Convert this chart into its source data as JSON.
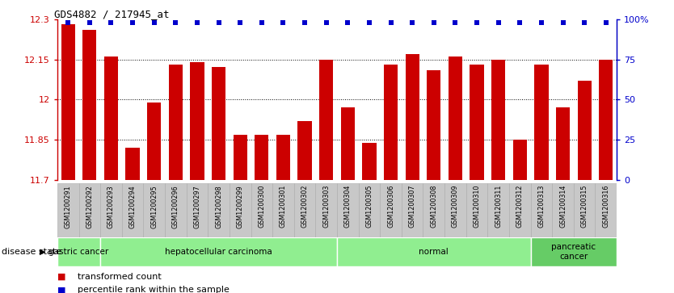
{
  "title": "GDS4882 / 217945_at",
  "samples": [
    "GSM1200291",
    "GSM1200292",
    "GSM1200293",
    "GSM1200294",
    "GSM1200295",
    "GSM1200296",
    "GSM1200297",
    "GSM1200298",
    "GSM1200299",
    "GSM1200300",
    "GSM1200301",
    "GSM1200302",
    "GSM1200303",
    "GSM1200304",
    "GSM1200305",
    "GSM1200306",
    "GSM1200307",
    "GSM1200308",
    "GSM1200309",
    "GSM1200310",
    "GSM1200311",
    "GSM1200312",
    "GSM1200313",
    "GSM1200314",
    "GSM1200315",
    "GSM1200316"
  ],
  "values": [
    12.28,
    12.26,
    12.16,
    11.82,
    11.99,
    12.13,
    12.14,
    12.12,
    11.87,
    11.87,
    11.87,
    11.92,
    12.15,
    11.97,
    11.84,
    12.13,
    12.17,
    12.11,
    12.16,
    12.13,
    12.15,
    11.85,
    12.13,
    11.97,
    12.07,
    12.15
  ],
  "ymin": 11.7,
  "ymax": 12.3,
  "yticks": [
    11.7,
    11.85,
    12.0,
    12.15,
    12.3
  ],
  "ytick_labels": [
    "11.7",
    "11.85",
    "12",
    "12.15",
    "12.3"
  ],
  "right_yticks": [
    0,
    25,
    50,
    75,
    100
  ],
  "right_ytick_labels": [
    "0",
    "25",
    "50",
    "75",
    "100%"
  ],
  "bar_color": "#cc0000",
  "percentile_color": "#0000cc",
  "bg_color": "#ffffff",
  "disease_groups": [
    {
      "label": "gastric cancer",
      "start": 0,
      "end": 2
    },
    {
      "label": "hepatocellular carcinoma",
      "start": 2,
      "end": 13
    },
    {
      "label": "normal",
      "start": 13,
      "end": 22
    },
    {
      "label": "pancreatic\ncancer",
      "start": 22,
      "end": 26
    }
  ],
  "group_colors": [
    "#90ee90",
    "#90ee90",
    "#90ee90",
    "#66cc66"
  ],
  "disease_state_label": "disease state",
  "legend_items": [
    {
      "color": "#cc0000",
      "label": "transformed count"
    },
    {
      "color": "#0000cc",
      "label": "percentile rank within the sample"
    }
  ],
  "tick_bg_color": "#c8c8c8",
  "tick_border_color": "#aaaaaa"
}
